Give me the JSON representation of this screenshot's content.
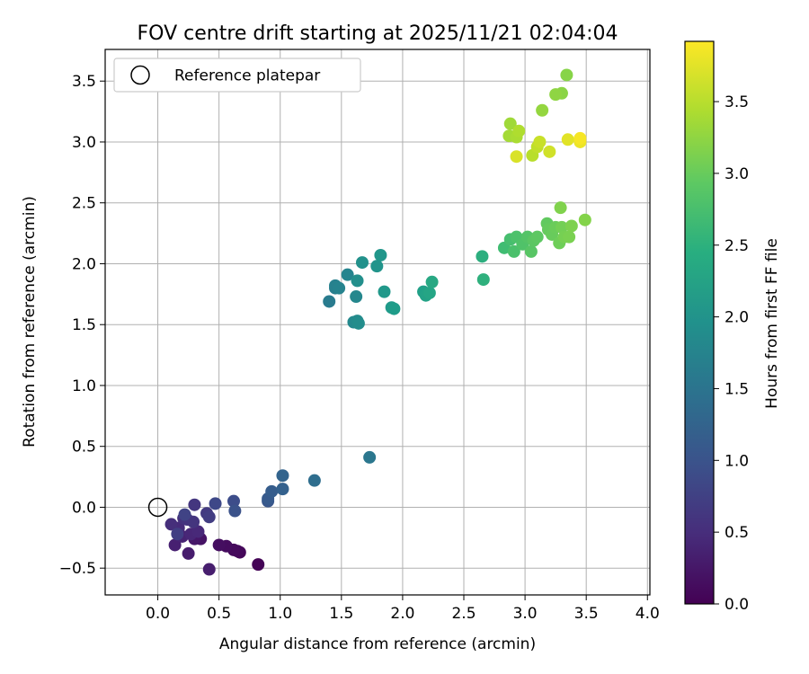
{
  "chart_data": {
    "type": "scatter",
    "title": "FOV centre drift starting at 2025/11/21 02:04:04",
    "xlabel": "Angular distance from reference (arcmin)",
    "ylabel": "Rotation from reference (arcmin)",
    "xlim": [
      -0.43,
      4.02
    ],
    "ylim": [
      -0.72,
      3.76
    ],
    "xticks": [
      "0.0",
      "0.5",
      "1.0",
      "1.5",
      "2.0",
      "2.5",
      "3.0",
      "3.5",
      "4.0"
    ],
    "xtick_values": [
      0,
      0.5,
      1,
      1.5,
      2,
      2.5,
      3,
      3.5,
      4
    ],
    "yticks": [
      "3.5",
      "3.0",
      "2.5",
      "2.0",
      "1.5",
      "1.0",
      "0.5",
      "0.0",
      "−0.5"
    ],
    "ytick_values": [
      3.5,
      3,
      2.5,
      2,
      1.5,
      1,
      0.5,
      0,
      -0.5
    ],
    "grid": true,
    "legend": {
      "position": "top-left",
      "label": "Reference platepar"
    },
    "reference_point": [
      0,
      0
    ],
    "colorbar": {
      "label": "Hours from first FF file",
      "range": [
        0,
        3.92
      ],
      "ticks": [
        "0.0",
        "0.5",
        "1.0",
        "1.5",
        "2.0",
        "2.5",
        "3.0",
        "3.5"
      ],
      "tick_values": [
        0,
        0.5,
        1,
        1.5,
        2,
        2.5,
        3,
        3.5
      ],
      "colormap": "viridis"
    },
    "points": [
      [
        0.82,
        -0.47,
        0.03
      ],
      [
        0.67,
        -0.37,
        0.06
      ],
      [
        0.65,
        -0.36,
        0.08
      ],
      [
        0.62,
        -0.35,
        0.1
      ],
      [
        0.56,
        -0.32,
        0.12
      ],
      [
        0.5,
        -0.31,
        0.15
      ],
      [
        0.35,
        -0.26,
        0.2
      ],
      [
        0.3,
        -0.26,
        0.25
      ],
      [
        0.25,
        -0.38,
        0.3
      ],
      [
        0.42,
        -0.51,
        0.32
      ],
      [
        0.14,
        -0.31,
        0.35
      ],
      [
        0.2,
        -0.24,
        0.38
      ],
      [
        0.27,
        -0.22,
        0.42
      ],
      [
        0.33,
        -0.2,
        0.45
      ],
      [
        0.17,
        -0.17,
        0.48
      ],
      [
        0.11,
        -0.14,
        0.52
      ],
      [
        0.21,
        -0.09,
        0.55
      ],
      [
        0.24,
        -0.1,
        0.58
      ],
      [
        0.29,
        -0.12,
        0.6
      ],
      [
        0.3,
        0.02,
        0.62
      ],
      [
        0.4,
        -0.05,
        0.66
      ],
      [
        0.42,
        -0.08,
        0.7
      ],
      [
        0.16,
        -0.22,
        0.72
      ],
      [
        0.22,
        -0.06,
        0.78
      ],
      [
        0.47,
        0.03,
        0.85
      ],
      [
        0.62,
        0.05,
        0.92
      ],
      [
        0.63,
        -0.03,
        0.98
      ],
      [
        0.9,
        0.05,
        1.05
      ],
      [
        0.9,
        0.07,
        1.1
      ],
      [
        0.93,
        0.13,
        1.15
      ],
      [
        1.02,
        0.15,
        1.2
      ],
      [
        1.02,
        0.26,
        1.25
      ],
      [
        1.28,
        0.22,
        1.4
      ],
      [
        1.73,
        0.41,
        1.55
      ],
      [
        1.4,
        1.69,
        1.62
      ],
      [
        1.45,
        1.8,
        1.68
      ],
      [
        1.45,
        1.82,
        1.72
      ],
      [
        1.48,
        1.8,
        1.75
      ],
      [
        1.55,
        1.91,
        1.78
      ],
      [
        1.62,
        1.73,
        1.82
      ],
      [
        1.6,
        1.52,
        1.85
      ],
      [
        1.63,
        1.53,
        1.88
      ],
      [
        1.64,
        1.51,
        1.92
      ],
      [
        1.63,
        1.86,
        1.95
      ],
      [
        1.67,
        2.01,
        1.98
      ],
      [
        1.79,
        1.98,
        2.02
      ],
      [
        1.82,
        2.07,
        2.05
      ],
      [
        1.85,
        1.77,
        2.08
      ],
      [
        1.91,
        1.64,
        2.12
      ],
      [
        1.93,
        1.63,
        2.15
      ],
      [
        2.17,
        1.77,
        2.22
      ],
      [
        2.19,
        1.74,
        2.25
      ],
      [
        2.22,
        1.76,
        2.3
      ],
      [
        2.24,
        1.85,
        2.35
      ],
      [
        2.65,
        2.06,
        2.45
      ],
      [
        2.66,
        1.87,
        2.5
      ],
      [
        2.83,
        2.13,
        2.7
      ],
      [
        2.88,
        2.2,
        2.75
      ],
      [
        2.91,
        2.1,
        2.78
      ],
      [
        2.93,
        2.22,
        2.8
      ],
      [
        2.98,
        2.16,
        2.82
      ],
      [
        3.02,
        2.22,
        2.85
      ],
      [
        3.05,
        2.1,
        2.88
      ],
      [
        3.07,
        2.19,
        2.9
      ],
      [
        3.1,
        2.22,
        2.92
      ],
      [
        3.18,
        2.33,
        2.95
      ],
      [
        3.19,
        2.28,
        2.98
      ],
      [
        3.22,
        2.24,
        3.0
      ],
      [
        3.25,
        2.3,
        3.02
      ],
      [
        3.28,
        2.17,
        3.05
      ],
      [
        3.3,
        2.3,
        3.08
      ],
      [
        3.32,
        2.22,
        3.1
      ],
      [
        3.36,
        2.22,
        3.12
      ],
      [
        3.38,
        2.31,
        3.14
      ],
      [
        3.29,
        2.46,
        3.16
      ],
      [
        3.49,
        2.36,
        3.18
      ],
      [
        3.34,
        3.55,
        3.2
      ],
      [
        3.3,
        3.4,
        3.22
      ],
      [
        3.25,
        3.39,
        3.25
      ],
      [
        3.14,
        3.26,
        3.28
      ],
      [
        2.88,
        3.15,
        3.35
      ],
      [
        2.87,
        3.05,
        3.38
      ],
      [
        2.93,
        3.04,
        3.42
      ],
      [
        2.95,
        3.09,
        3.45
      ],
      [
        3.06,
        2.89,
        3.5
      ],
      [
        3.1,
        2.96,
        3.55
      ],
      [
        3.12,
        3.0,
        3.6
      ],
      [
        3.2,
        2.92,
        3.65
      ],
      [
        2.93,
        2.88,
        3.7
      ],
      [
        3.35,
        3.02,
        3.75
      ],
      [
        3.45,
        3.0,
        3.82
      ],
      [
        3.45,
        3.03,
        3.88
      ]
    ]
  }
}
